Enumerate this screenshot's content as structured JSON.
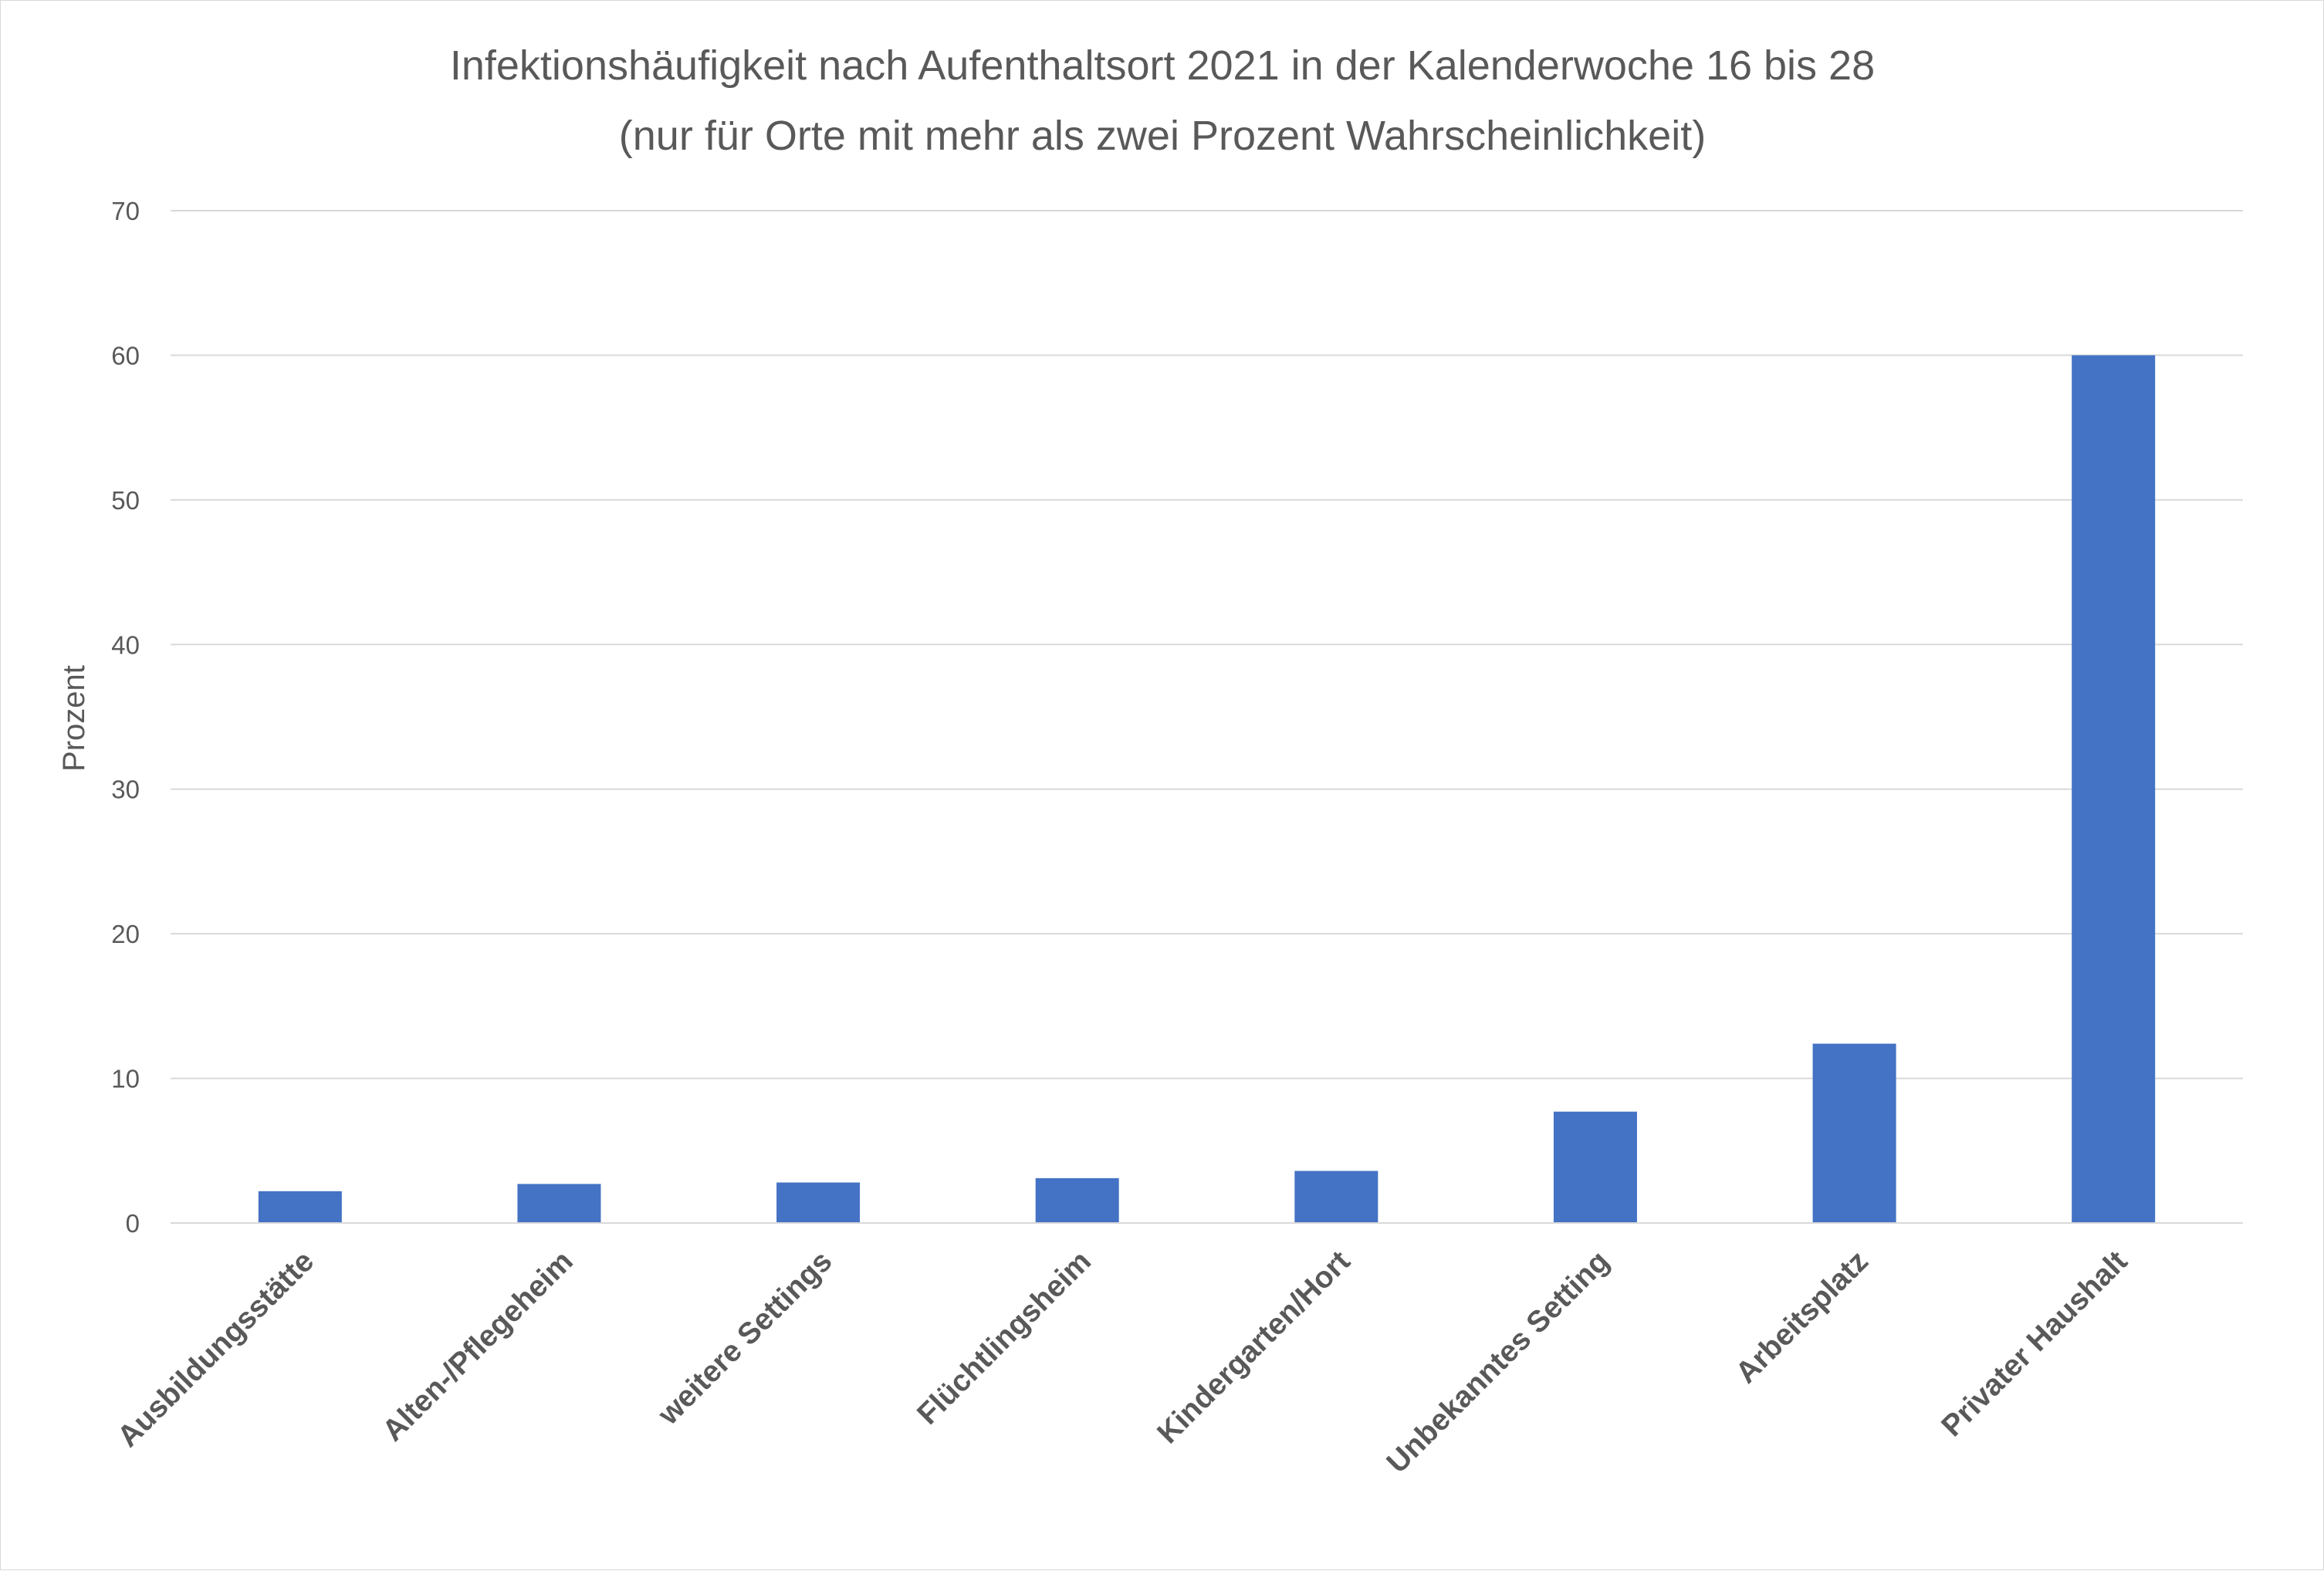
{
  "chart_data": {
    "type": "bar",
    "title": "Infektionshäufigkeit nach Aufenthaltsort 2021 in der Kalenderwoche 16 bis 28",
    "subtitle": "(nur für Orte mit mehr als zwei Prozent Wahrscheinlichkeit)",
    "xlabel": "",
    "ylabel": "Prozent",
    "ylim": [
      0,
      70
    ],
    "yticks": [
      0,
      10,
      20,
      30,
      40,
      50,
      60,
      70
    ],
    "grid": true,
    "legend": "none",
    "bar_color": "#4472c4",
    "categories": [
      "Ausbildungsstätte",
      "Alten-/Pflegeheim",
      "weitere Settings",
      "Flüchtlingsheim",
      "Kindergarten/Hort",
      "Unbekanntes Setting",
      "Arbeitsplatz",
      "Privater Haushalt"
    ],
    "values": [
      2.2,
      2.7,
      2.8,
      3.1,
      3.6,
      7.7,
      12.4,
      60.0
    ]
  }
}
